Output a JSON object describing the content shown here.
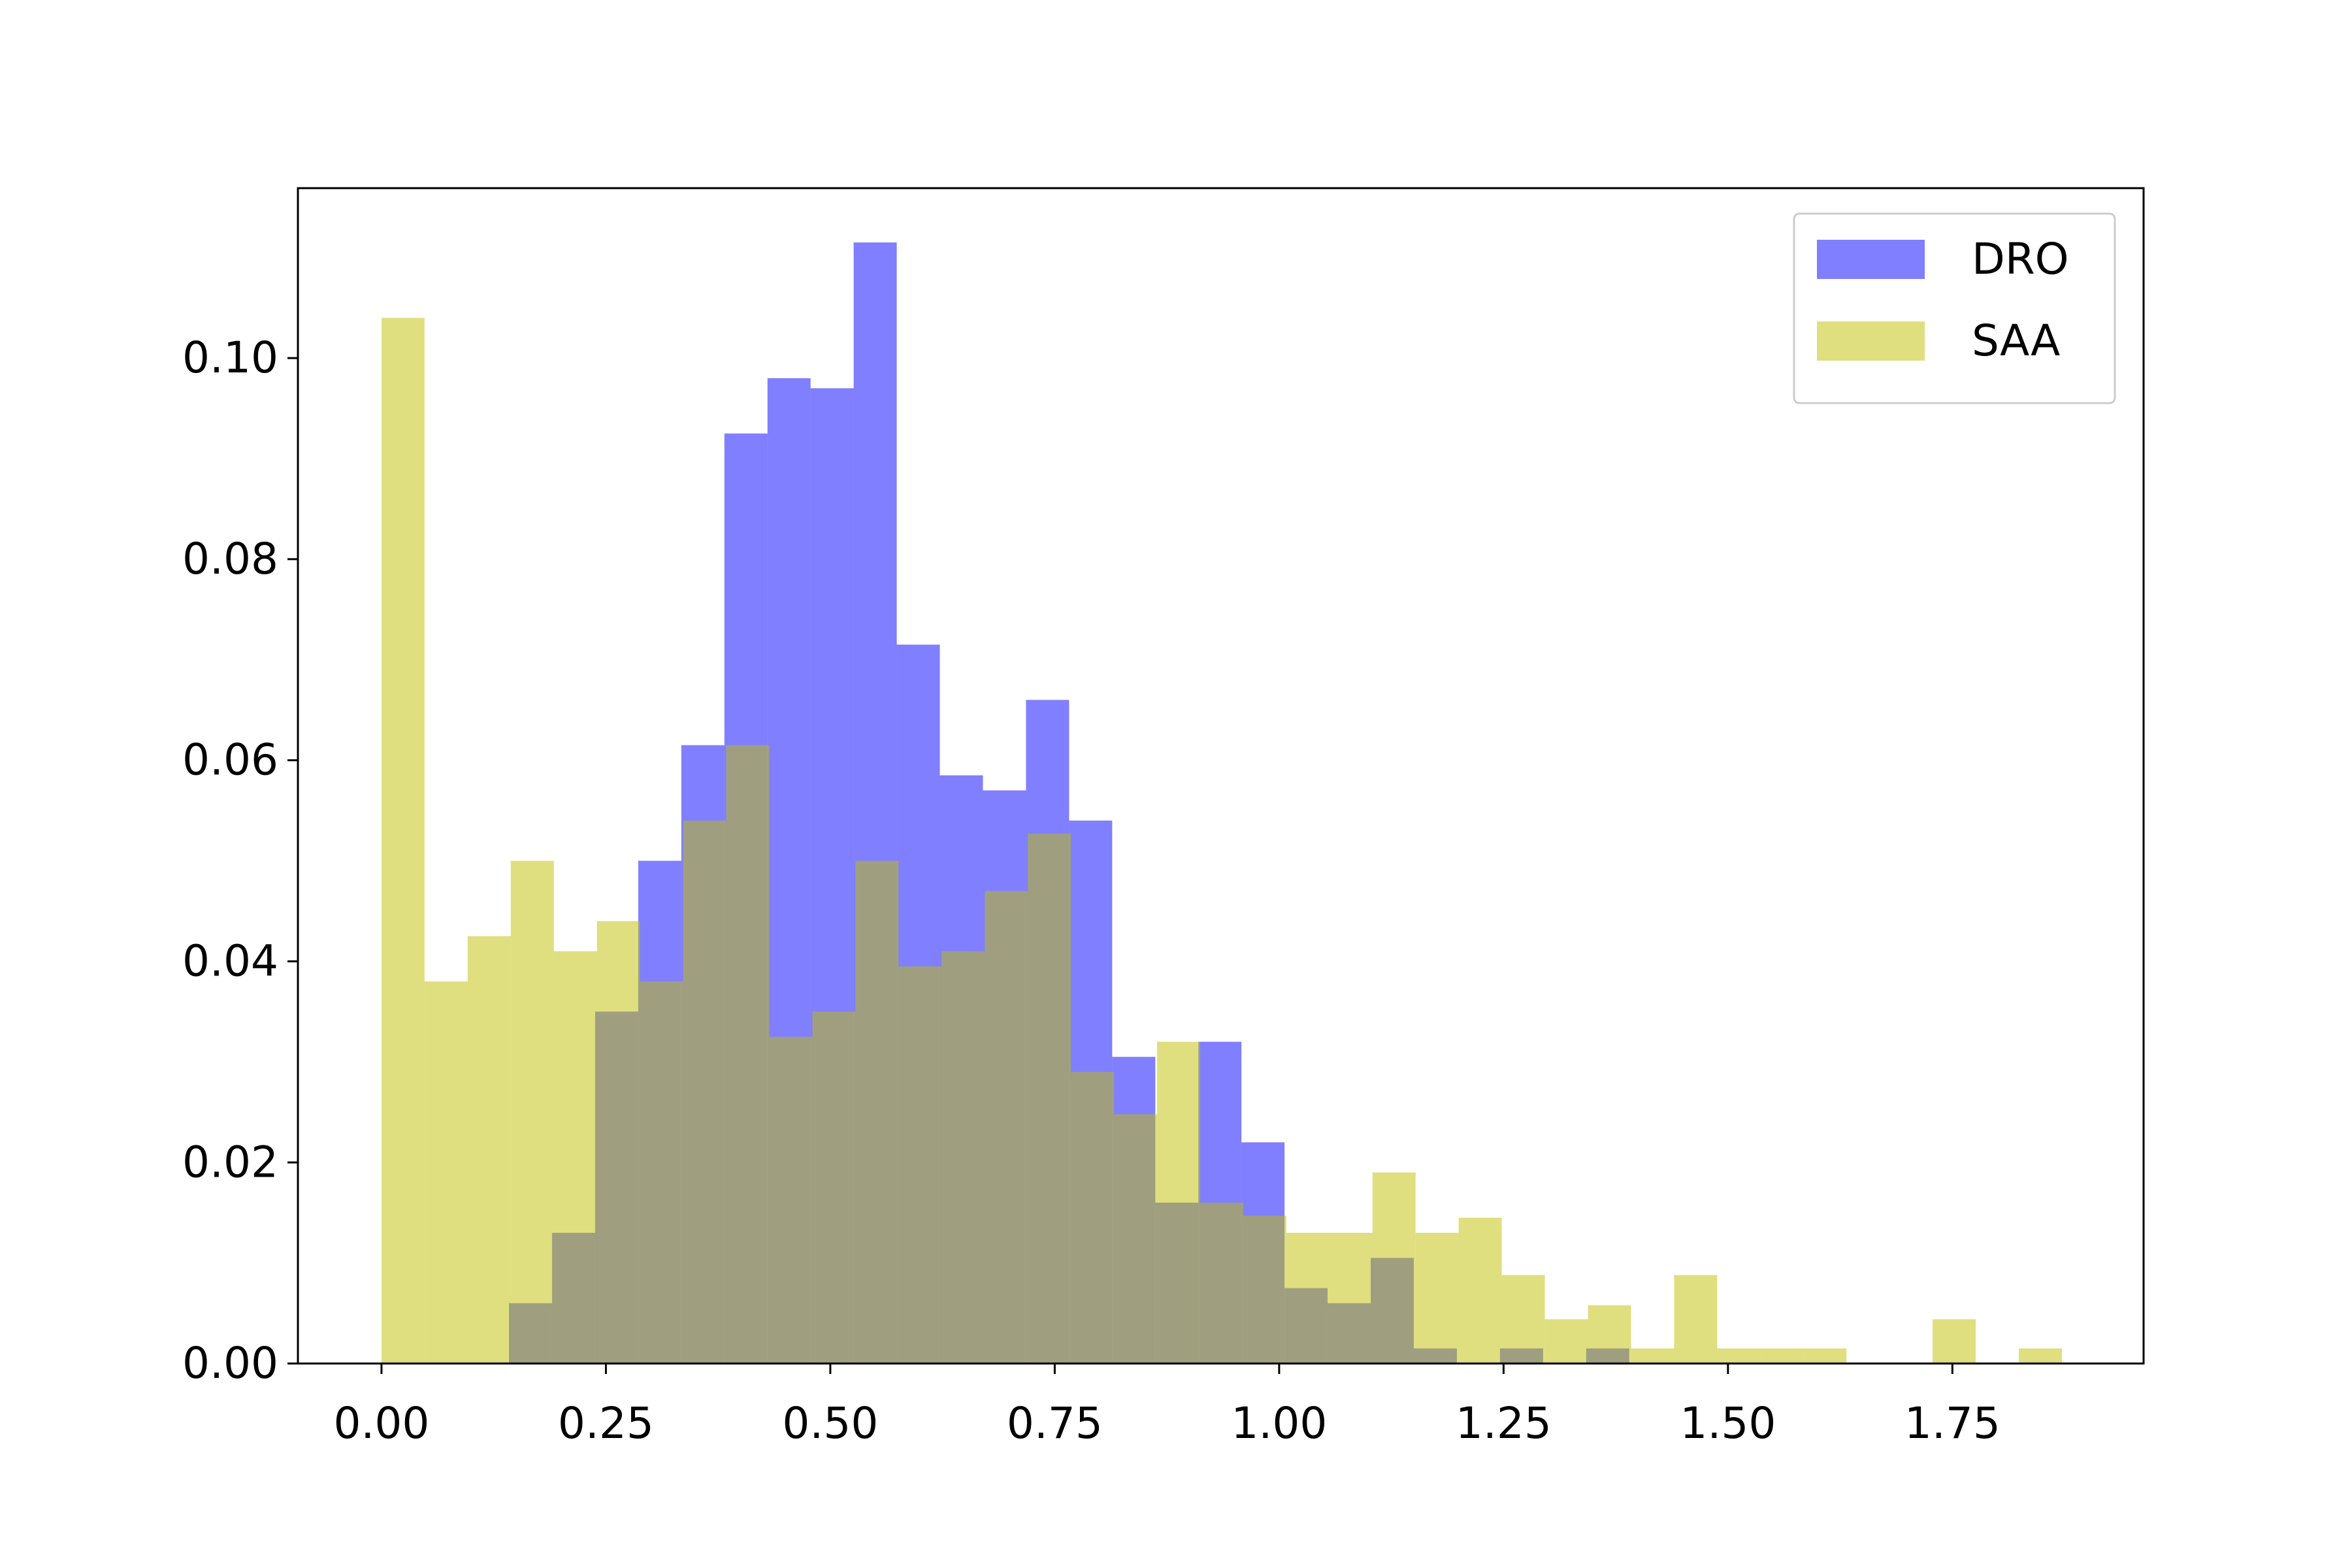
{
  "chart_data": {
    "type": "histogram",
    "xlim": [
      -0.0931,
      1.963
    ],
    "ylim": [
      0,
      0.1169
    ],
    "xticks": [
      {
        "value": 0,
        "label": "0.00"
      },
      {
        "value": 0.25,
        "label": "0.25"
      },
      {
        "value": 0.5,
        "label": "0.50"
      },
      {
        "value": 0.75,
        "label": "0.75"
      },
      {
        "value": 1,
        "label": "1.00"
      },
      {
        "value": 1.25,
        "label": "1.25"
      },
      {
        "value": 1.5,
        "label": "1.50"
      },
      {
        "value": 1.75,
        "label": "1.75"
      }
    ],
    "yticks": [
      {
        "value": 0,
        "label": "0.00"
      },
      {
        "value": 0.02,
        "label": "0.02"
      },
      {
        "value": 0.04,
        "label": "0.04"
      },
      {
        "value": 0.06,
        "label": "0.06"
      },
      {
        "value": 0.08,
        "label": "0.08"
      },
      {
        "value": 0.1,
        "label": "0.10"
      }
    ],
    "legend": "upper right",
    "series": [
      {
        "name": "DRO",
        "color": "#0000ff",
        "alpha": 0.5,
        "bins": [
          0.142,
          0.19,
          0.238,
          0.286,
          0.334,
          0.382,
          0.43,
          0.478,
          0.526,
          0.574,
          0.622,
          0.67,
          0.718,
          0.766,
          0.814,
          0.862,
          0.91,
          0.958,
          1.006,
          1.054,
          1.102,
          1.15,
          1.198,
          1.246,
          1.294,
          1.342,
          1.39
        ],
        "values": [
          0.006,
          0.013,
          0.035,
          0.05,
          0.0615,
          0.0925,
          0.098,
          0.097,
          0.1115,
          0.0715,
          0.0585,
          0.057,
          0.066,
          0.054,
          0.0305,
          0.016,
          0.032,
          0.022,
          0.0075,
          0.006,
          0.0105,
          0.0015,
          0,
          0.0015,
          0,
          0.0015
        ]
      },
      {
        "name": "SAA",
        "color": "#bfbf00",
        "alpha": 0.5,
        "bins": [
          0,
          0.048,
          0.096,
          0.144,
          0.192,
          0.24,
          0.288,
          0.336,
          0.384,
          0.432,
          0.48,
          0.528,
          0.576,
          0.624,
          0.672,
          0.72,
          0.768,
          0.816,
          0.864,
          0.912,
          0.96,
          1.008,
          1.056,
          1.104,
          1.152,
          1.2,
          1.248,
          1.296,
          1.344,
          1.392,
          1.44,
          1.488,
          1.536,
          1.584,
          1.632,
          1.68,
          1.728,
          1.776,
          1.824,
          1.872
        ],
        "values": [
          0.104,
          0.038,
          0.0425,
          0.05,
          0.041,
          0.044,
          0.038,
          0.054,
          0.0615,
          0.0325,
          0.035,
          0.05,
          0.0395,
          0.041,
          0.047,
          0.0527,
          0.029,
          0.0248,
          0.032,
          0.016,
          0.0147,
          0.013,
          0.013,
          0.019,
          0.013,
          0.0145,
          0.0088,
          0.0044,
          0.0058,
          0.0015,
          0.0088,
          0.0015,
          0.0015,
          0.0015,
          0,
          0,
          0.0044,
          0,
          0.0015
        ]
      }
    ]
  }
}
